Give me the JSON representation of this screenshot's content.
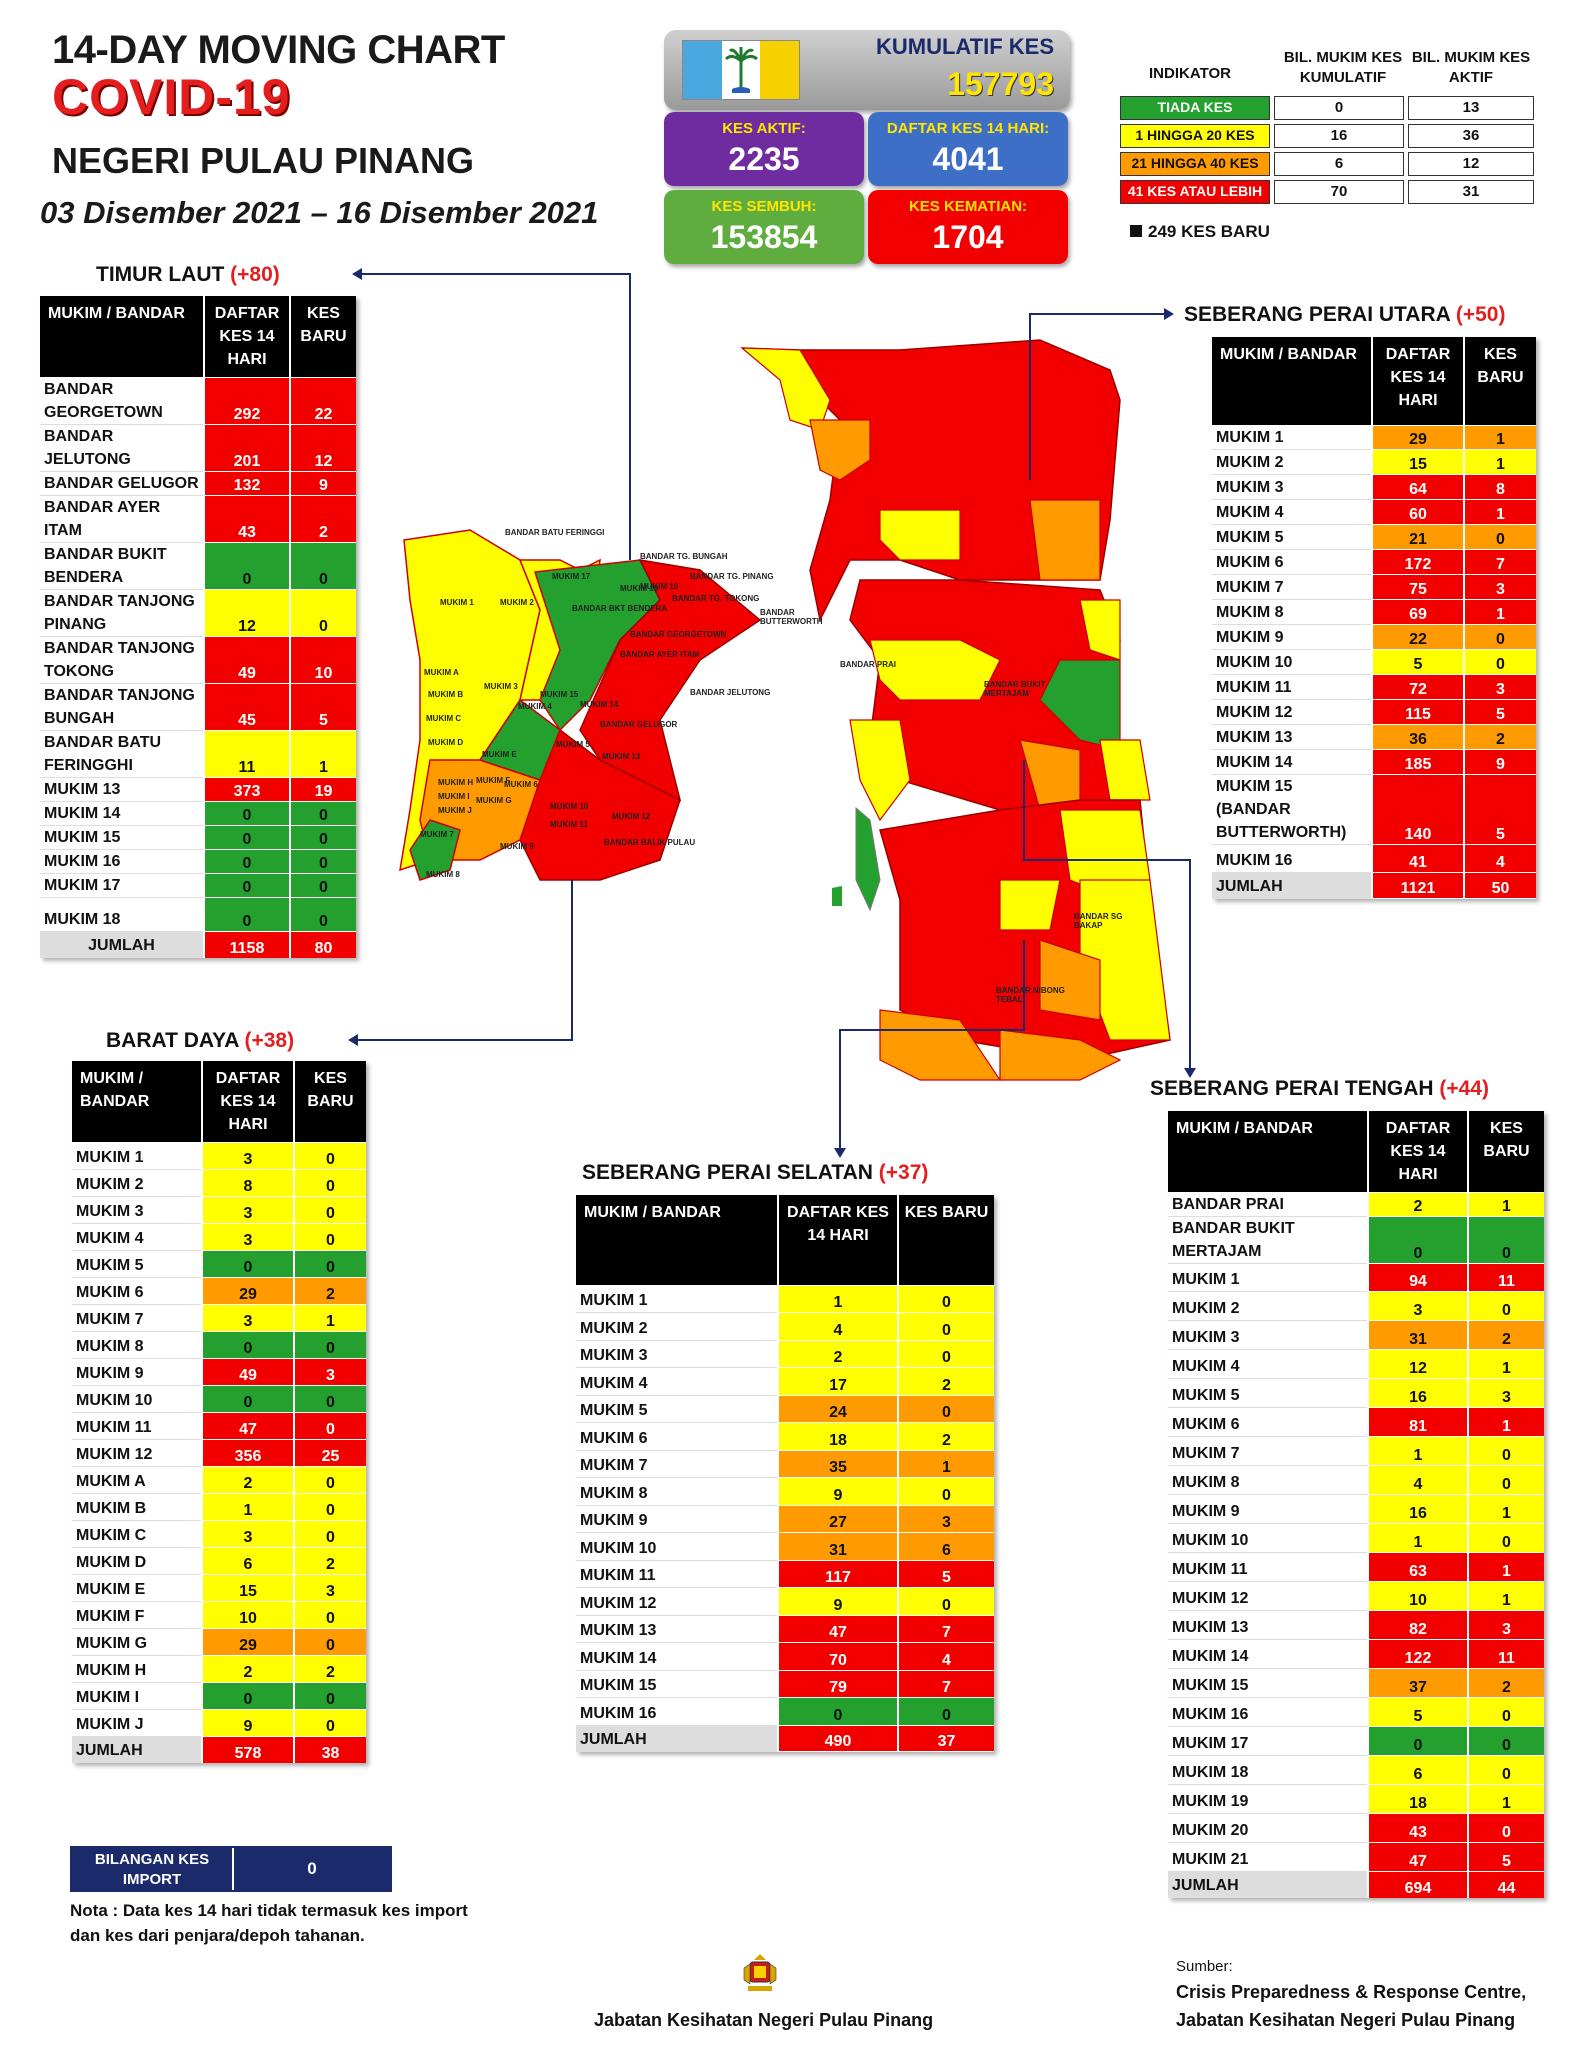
{
  "header": {
    "line1": "14-DAY MOVING CHART",
    "line2": "COVID-19",
    "line3": "NEGERI PULAU PINANG",
    "date": "03 Disember 2021 – 16 Disember 2021"
  },
  "stats": {
    "kumulatif_label": "KUMULATIF KES",
    "kumulatif_value": "157793",
    "aktif_label": "KES AKTIF:",
    "aktif_value": "2235",
    "daftar_label": "DAFTAR KES 14 HARI:",
    "daftar_value": "4041",
    "sembuh_label": "KES SEMBUH:",
    "sembuh_value": "153854",
    "kematian_label": "KES KEMATIAN:",
    "kematian_value": "1704",
    "flag_colors": [
      "#4aa8e0",
      "#ffffff",
      "#f7d000"
    ]
  },
  "legend": {
    "h_indikator": "INDIKATOR",
    "h_kumulatif": "BIL. MUKIM KES KUMULATIF",
    "h_aktif": "BIL. MUKIM KES AKTIF",
    "rows": [
      {
        "label": "TIADA KES",
        "kumulatif": "0",
        "aktif": "13",
        "color": "#24a02e",
        "text": "#fff"
      },
      {
        "label": "1 HINGGA 20 KES",
        "kumulatif": "16",
        "aktif": "36",
        "color": "#ffff00",
        "text": "#111"
      },
      {
        "label": "21 HINGGA 40 KES",
        "kumulatif": "6",
        "aktif": "12",
        "color": "#ff9b00",
        "text": "#111"
      },
      {
        "label": "41 KES ATAU LEBIH",
        "kumulatif": "70",
        "aktif": "31",
        "color": "#f20000",
        "text": "#fff"
      }
    ],
    "kes_baru": "249 KES BARU"
  },
  "table_headers": {
    "mukim": "MUKIM / BANDAR",
    "daftar": "DAFTAR KES 14 HARI",
    "baru": "KES BARU"
  },
  "districts": {
    "timur_laut": {
      "name": "TIMUR LAUT",
      "plus": "(+80)",
      "rows": [
        [
          "BANDAR GEORGETOWN",
          "292",
          "22",
          "r",
          "r"
        ],
        [
          "BANDAR JELUTONG",
          "201",
          "12",
          "r",
          "r"
        ],
        [
          "BANDAR GELUGOR",
          "132",
          "9",
          "r",
          "r"
        ],
        [
          "BANDAR AYER ITAM",
          "43",
          "2",
          "r",
          "r"
        ],
        [
          "BANDAR BUKIT BENDERA",
          "0",
          "0",
          "g",
          "g"
        ],
        [
          "BANDAR TANJONG PINANG",
          "12",
          "0",
          "y",
          "y"
        ],
        [
          "BANDAR TANJONG TOKONG",
          "49",
          "10",
          "r",
          "r"
        ],
        [
          "BANDAR TANJONG BUNGAH",
          "45",
          "5",
          "r",
          "r"
        ],
        [
          "BANDAR BATU FERINGGHI",
          "11",
          "1",
          "y",
          "y"
        ],
        [
          "MUKIM 13",
          "373",
          "19",
          "r",
          "r"
        ],
        [
          "MUKIM 14",
          "0",
          "0",
          "g",
          "g"
        ],
        [
          "MUKIM 15",
          "0",
          "0",
          "g",
          "g"
        ],
        [
          "MUKIM 16",
          "0",
          "0",
          "g",
          "g"
        ],
        [
          "MUKIM 17",
          "0",
          "0",
          "g",
          "g"
        ],
        [
          "MUKIM 18",
          "0",
          "0",
          "g",
          "g"
        ]
      ],
      "total": [
        "JUMLAH",
        "1158",
        "80"
      ]
    },
    "barat_daya": {
      "name": "BARAT DAYA",
      "plus": "(+38)",
      "rows": [
        [
          "MUKIM 1",
          "3",
          "0",
          "y",
          "y"
        ],
        [
          "MUKIM 2",
          "8",
          "0",
          "y",
          "y"
        ],
        [
          "MUKIM 3",
          "3",
          "0",
          "y",
          "y"
        ],
        [
          "MUKIM 4",
          "3",
          "0",
          "y",
          "y"
        ],
        [
          "MUKIM 5",
          "0",
          "0",
          "g",
          "g"
        ],
        [
          "MUKIM 6",
          "29",
          "2",
          "o",
          "o"
        ],
        [
          "MUKIM 7",
          "3",
          "1",
          "y",
          "y"
        ],
        [
          "MUKIM 8",
          "0",
          "0",
          "g",
          "g"
        ],
        [
          "MUKIM 9",
          "49",
          "3",
          "r",
          "r"
        ],
        [
          "MUKIM 10",
          "0",
          "0",
          "g",
          "g"
        ],
        [
          "MUKIM 11",
          "47",
          "0",
          "r",
          "r"
        ],
        [
          "MUKIM 12",
          "356",
          "25",
          "r",
          "r"
        ],
        [
          "MUKIM A",
          "2",
          "0",
          "y",
          "y"
        ],
        [
          "MUKIM B",
          "1",
          "0",
          "y",
          "y"
        ],
        [
          "MUKIM C",
          "3",
          "0",
          "y",
          "y"
        ],
        [
          "MUKIM D",
          "6",
          "2",
          "y",
          "y"
        ],
        [
          "MUKIM E",
          "15",
          "3",
          "y",
          "y"
        ],
        [
          "MUKIM F",
          "10",
          "0",
          "y",
          "y"
        ],
        [
          "MUKIM G",
          "29",
          "0",
          "o",
          "o"
        ],
        [
          "MUKIM H",
          "2",
          "2",
          "y",
          "y"
        ],
        [
          "MUKIM I",
          "0",
          "0",
          "g",
          "g"
        ],
        [
          "MUKIM J",
          "9",
          "0",
          "y",
          "y"
        ]
      ],
      "total": [
        "JUMLAH",
        "578",
        "38"
      ]
    },
    "spu": {
      "name": "SEBERANG PERAI UTARA",
      "plus": "(+50)",
      "rows": [
        [
          "MUKIM 1",
          "29",
          "1",
          "o",
          "o"
        ],
        [
          "MUKIM 2",
          "15",
          "1",
          "y",
          "y"
        ],
        [
          "MUKIM 3",
          "64",
          "8",
          "r",
          "r"
        ],
        [
          "MUKIM 4",
          "60",
          "1",
          "r",
          "r"
        ],
        [
          "MUKIM 5",
          "21",
          "0",
          "o",
          "o"
        ],
        [
          "MUKIM 6",
          "172",
          "7",
          "r",
          "r"
        ],
        [
          "MUKIM 7",
          "75",
          "3",
          "r",
          "r"
        ],
        [
          "MUKIM 8",
          "69",
          "1",
          "r",
          "r"
        ],
        [
          "MUKIM 9",
          "22",
          "0",
          "o",
          "o"
        ],
        [
          "MUKIM 10",
          "5",
          "0",
          "y",
          "y"
        ],
        [
          "MUKIM 11",
          "72",
          "3",
          "r",
          "r"
        ],
        [
          "MUKIM 12",
          "115",
          "5",
          "r",
          "r"
        ],
        [
          "MUKIM 13",
          "36",
          "2",
          "o",
          "o"
        ],
        [
          "MUKIM 14",
          "185",
          "9",
          "r",
          "r"
        ],
        [
          "MUKIM 15 (BANDAR BUTTERWORTH)",
          "140",
          "5",
          "r",
          "r"
        ],
        [
          "MUKIM 16",
          "41",
          "4",
          "r",
          "r"
        ]
      ],
      "total": [
        "JUMLAH",
        "1121",
        "50"
      ]
    },
    "sps": {
      "name": "SEBERANG PERAI SELATAN",
      "plus": "(+37)",
      "rows": [
        [
          "MUKIM 1",
          "1",
          "0",
          "y",
          "y"
        ],
        [
          "MUKIM 2",
          "4",
          "0",
          "y",
          "y"
        ],
        [
          "MUKIM 3",
          "2",
          "0",
          "y",
          "y"
        ],
        [
          "MUKIM 4",
          "17",
          "2",
          "y",
          "y"
        ],
        [
          "MUKIM 5",
          "24",
          "0",
          "o",
          "o"
        ],
        [
          "MUKIM 6",
          "18",
          "2",
          "y",
          "y"
        ],
        [
          "MUKIM 7",
          "35",
          "1",
          "o",
          "o"
        ],
        [
          "MUKIM 8",
          "9",
          "0",
          "y",
          "y"
        ],
        [
          "MUKIM 9",
          "27",
          "3",
          "o",
          "o"
        ],
        [
          "MUKIM 10",
          "31",
          "6",
          "o",
          "o"
        ],
        [
          "MUKIM 11",
          "117",
          "5",
          "r",
          "r"
        ],
        [
          "MUKIM 12",
          "9",
          "0",
          "y",
          "y"
        ],
        [
          "MUKIM 13",
          "47",
          "7",
          "r",
          "r"
        ],
        [
          "MUKIM 14",
          "70",
          "4",
          "r",
          "r"
        ],
        [
          "MUKIM 15",
          "79",
          "7",
          "r",
          "r"
        ],
        [
          "MUKIM 16",
          "0",
          "0",
          "g",
          "g"
        ]
      ],
      "total": [
        "JUMLAH",
        "490",
        "37"
      ]
    },
    "spt": {
      "name": "SEBERANG PERAI TENGAH",
      "plus": "(+44)",
      "rows": [
        [
          "BANDAR PRAI",
          "2",
          "1",
          "y",
          "y"
        ],
        [
          "BANDAR BUKIT MERTAJAM",
          "0",
          "0",
          "g",
          "g"
        ],
        [
          "MUKIM 1",
          "94",
          "11",
          "r",
          "r"
        ],
        [
          "MUKIM 2",
          "3",
          "0",
          "y",
          "y"
        ],
        [
          "MUKIM 3",
          "31",
          "2",
          "o",
          "o"
        ],
        [
          "MUKIM 4",
          "12",
          "1",
          "y",
          "y"
        ],
        [
          "MUKIM 5",
          "16",
          "3",
          "y",
          "y"
        ],
        [
          "MUKIM 6",
          "81",
          "1",
          "r",
          "r"
        ],
        [
          "MUKIM 7",
          "1",
          "0",
          "y",
          "y"
        ],
        [
          "MUKIM 8",
          "4",
          "0",
          "y",
          "y"
        ],
        [
          "MUKIM 9",
          "16",
          "1",
          "y",
          "y"
        ],
        [
          "MUKIM 10",
          "1",
          "0",
          "y",
          "y"
        ],
        [
          "MUKIM 11",
          "63",
          "1",
          "r",
          "r"
        ],
        [
          "MUKIM 12",
          "10",
          "1",
          "y",
          "y"
        ],
        [
          "MUKIM 13",
          "82",
          "3",
          "r",
          "r"
        ],
        [
          "MUKIM 14",
          "122",
          "11",
          "r",
          "r"
        ],
        [
          "MUKIM 15",
          "37",
          "2",
          "o",
          "o"
        ],
        [
          "MUKIM 16",
          "5",
          "0",
          "y",
          "y"
        ],
        [
          "MUKIM 17",
          "0",
          "0",
          "g",
          "g"
        ],
        [
          "MUKIM 18",
          "6",
          "0",
          "y",
          "y"
        ],
        [
          "MUKIM 19",
          "18",
          "1",
          "y",
          "y"
        ],
        [
          "MUKIM 20",
          "43",
          "0",
          "r",
          "r"
        ],
        [
          "MUKIM 21",
          "47",
          "5",
          "r",
          "r"
        ]
      ],
      "total": [
        "JUMLAH",
        "694",
        "44"
      ]
    }
  },
  "map_labels": {
    "island": [
      "BANDAR BATU FERINGGI",
      "BANDAR TG. BUNGAH",
      "BANDAR TG. PINANG",
      "BANDAR TG. TOKONG",
      "BANDAR GEORGETOWN",
      "BANDAR AYER ITAM",
      "BANDAR JELUTONG",
      "BANDAR GELUGOR",
      "BANDAR BKT BENDERA",
      "MUKIM 17",
      "MUKIM 18",
      "MUKIM 16",
      "MUKIM 14",
      "MUKIM 15",
      "MUKIM 13",
      "MUKIM 1",
      "MUKIM 2",
      "MUKIM 3",
      "MUKIM 4",
      "MUKIM 5",
      "MUKIM 6",
      "MUKIM 7",
      "MUKIM 8",
      "MUKIM 9",
      "MUKIM 10",
      "MUKIM 11",
      "MUKIM 12",
      "BANDAR BALIK PULAU",
      "MUKIM A",
      "MUKIM B",
      "MUKIM C",
      "MUKIM D",
      "MUKIM E",
      "MUKIM F",
      "MUKIM G",
      "MUKIM H",
      "MUKIM I",
      "MUKIM J"
    ],
    "mainland": [
      "BANDAR BUTTERWORTH",
      "BANDAR PRAI",
      "BANDAR BUKIT MERTAJAM",
      "BANDAR SG BAKAP",
      "BANDAR NIBONG TEBAL"
    ]
  },
  "import": {
    "label": "BILANGAN KES IMPORT",
    "value": "0"
  },
  "nota": "Nota : Data kes 14 hari tidak termasuk kes import dan kes dari penjara/depoh tahanan.",
  "footer": {
    "center": "Jabatan Kesihatan Negeri Pulau Pinang",
    "sumber_label": "Sumber:",
    "sumber_line1": "Crisis Preparedness & Response Centre,",
    "sumber_line2": "Jabatan Kesihatan Negeri Pulau Pinang"
  },
  "colors": {
    "red": "#f20000",
    "orange": "#ff9b00",
    "yellow": "#ffff00",
    "green": "#24a02e"
  }
}
